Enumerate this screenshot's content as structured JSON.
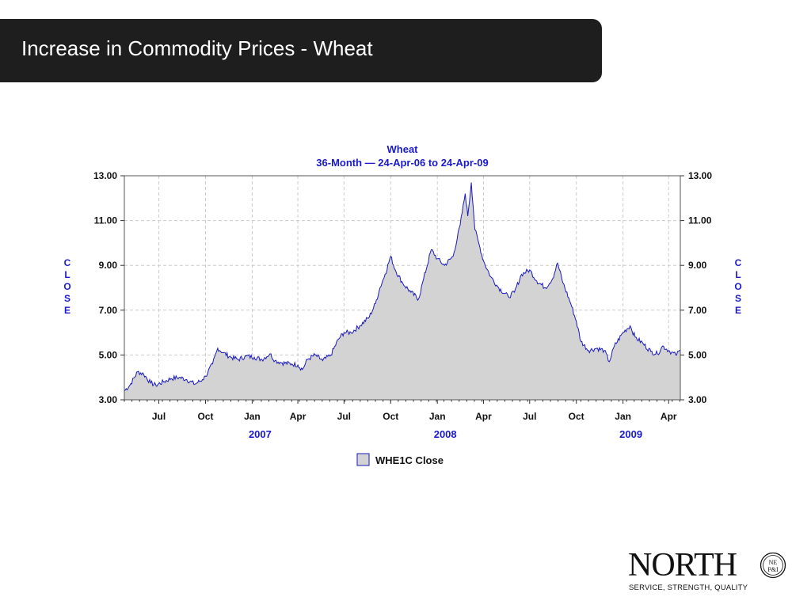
{
  "slide": {
    "title": "Increase in Commodity Prices - Wheat"
  },
  "logo": {
    "name": "NORTH",
    "seal_text": "NE P&I",
    "tagline": "SERVICE, STRENGTH, QUALITY"
  },
  "colors": {
    "title_bar": "#1e1e1e",
    "chart_text": "#1a1acc",
    "series_line": "#1a1abb",
    "series_fill": "#d3d3d3"
  },
  "chart_data": {
    "type": "area",
    "title": "Wheat",
    "subtitle": "36-Month — 24-Apr-06 to 24-Apr-09",
    "ylabel_left": "CLOSE",
    "ylabel_right": "CLOSE",
    "ylim": [
      3.0,
      13.0
    ],
    "yticks": [
      "13.00",
      "11.00",
      "9.00",
      "7.00",
      "5.00",
      "3.00"
    ],
    "ytick_values": [
      13,
      11,
      9,
      7,
      5,
      3
    ],
    "xlim": [
      "2006-04-24",
      "2009-04-24"
    ],
    "month_ticks": [
      {
        "label": "Jul",
        "date": "2006-07-01"
      },
      {
        "label": "Oct",
        "date": "2006-10-01"
      },
      {
        "label": "Jan",
        "date": "2007-01-01"
      },
      {
        "label": "Apr",
        "date": "2007-04-01"
      },
      {
        "label": "Jul",
        "date": "2007-07-01"
      },
      {
        "label": "Oct",
        "date": "2007-10-01"
      },
      {
        "label": "Jan",
        "date": "2008-01-01"
      },
      {
        "label": "Apr",
        "date": "2008-04-01"
      },
      {
        "label": "Jul",
        "date": "2008-07-01"
      },
      {
        "label": "Oct",
        "date": "2008-10-01"
      },
      {
        "label": "Jan",
        "date": "2009-01-01"
      },
      {
        "label": "Apr",
        "date": "2009-04-01"
      }
    ],
    "year_labels": [
      {
        "label": "2007",
        "date": "2007-01-01"
      },
      {
        "label": "2008",
        "date": "2008-01-01"
      },
      {
        "label": "2009",
        "date": "2009-01-01"
      }
    ],
    "grid": true,
    "legend": {
      "position": "bottom",
      "entries": [
        "WHE1C Close"
      ]
    },
    "series": [
      {
        "name": "WHE1C Close",
        "points": [
          [
            "2006-04-24",
            3.4
          ],
          [
            "2006-05-05",
            3.65
          ],
          [
            "2006-05-20",
            4.25
          ],
          [
            "2006-06-01",
            4.15
          ],
          [
            "2006-06-15",
            3.75
          ],
          [
            "2006-06-25",
            3.65
          ],
          [
            "2006-07-10",
            3.8
          ],
          [
            "2006-07-25",
            3.95
          ],
          [
            "2006-08-10",
            4.0
          ],
          [
            "2006-08-25",
            3.9
          ],
          [
            "2006-09-10",
            3.7
          ],
          [
            "2006-09-25",
            3.9
          ],
          [
            "2006-10-01",
            4.05
          ],
          [
            "2006-10-15",
            4.6
          ],
          [
            "2006-10-25",
            5.3
          ],
          [
            "2006-11-05",
            5.1
          ],
          [
            "2006-11-20",
            4.9
          ],
          [
            "2006-12-05",
            4.8
          ],
          [
            "2006-12-20",
            4.95
          ],
          [
            "2007-01-05",
            4.9
          ],
          [
            "2007-01-20",
            4.8
          ],
          [
            "2007-02-05",
            5.05
          ],
          [
            "2007-02-15",
            4.75
          ],
          [
            "2007-03-01",
            4.65
          ],
          [
            "2007-03-20",
            4.6
          ],
          [
            "2007-04-01",
            4.55
          ],
          [
            "2007-04-10",
            4.35
          ],
          [
            "2007-04-20",
            4.8
          ],
          [
            "2007-05-05",
            5.0
          ],
          [
            "2007-05-20",
            4.75
          ],
          [
            "2007-06-05",
            5.0
          ],
          [
            "2007-06-20",
            5.7
          ],
          [
            "2007-07-01",
            6.0
          ],
          [
            "2007-07-15",
            6.0
          ],
          [
            "2007-08-01",
            6.3
          ],
          [
            "2007-08-20",
            6.7
          ],
          [
            "2007-09-01",
            7.3
          ],
          [
            "2007-09-10",
            8.0
          ],
          [
            "2007-09-20",
            8.6
          ],
          [
            "2007-10-01",
            9.4
          ],
          [
            "2007-10-10",
            8.8
          ],
          [
            "2007-10-25",
            8.2
          ],
          [
            "2007-11-10",
            7.8
          ],
          [
            "2007-11-25",
            7.5
          ],
          [
            "2007-12-05",
            8.4
          ],
          [
            "2007-12-20",
            9.7
          ],
          [
            "2008-01-01",
            9.3
          ],
          [
            "2008-01-15",
            9.0
          ],
          [
            "2008-02-01",
            9.4
          ],
          [
            "2008-02-15",
            10.8
          ],
          [
            "2008-02-25",
            12.2
          ],
          [
            "2008-03-01",
            11.2
          ],
          [
            "2008-03-08",
            12.7
          ],
          [
            "2008-03-15",
            10.6
          ],
          [
            "2008-03-25",
            9.8
          ],
          [
            "2008-04-01",
            9.2
          ],
          [
            "2008-04-15",
            8.5
          ],
          [
            "2008-05-01",
            8.0
          ],
          [
            "2008-05-20",
            7.6
          ],
          [
            "2008-06-01",
            7.8
          ],
          [
            "2008-06-15",
            8.6
          ],
          [
            "2008-07-01",
            8.8
          ],
          [
            "2008-07-15",
            8.3
          ],
          [
            "2008-08-01",
            8.0
          ],
          [
            "2008-08-15",
            8.4
          ],
          [
            "2008-08-25",
            9.1
          ],
          [
            "2008-09-05",
            8.2
          ],
          [
            "2008-09-20",
            7.3
          ],
          [
            "2008-10-01",
            6.5
          ],
          [
            "2008-10-10",
            5.6
          ],
          [
            "2008-10-25",
            5.2
          ],
          [
            "2008-11-10",
            5.3
          ],
          [
            "2008-11-25",
            5.2
          ],
          [
            "2008-12-05",
            4.7
          ],
          [
            "2008-12-15",
            5.4
          ],
          [
            "2009-01-01",
            6.0
          ],
          [
            "2009-01-15",
            6.3
          ],
          [
            "2009-01-25",
            5.8
          ],
          [
            "2009-02-10",
            5.5
          ],
          [
            "2009-02-25",
            5.15
          ],
          [
            "2009-03-10",
            5.05
          ],
          [
            "2009-03-20",
            5.4
          ],
          [
            "2009-04-01",
            5.2
          ],
          [
            "2009-04-15",
            5.0
          ],
          [
            "2009-04-24",
            5.2
          ]
        ]
      }
    ]
  }
}
